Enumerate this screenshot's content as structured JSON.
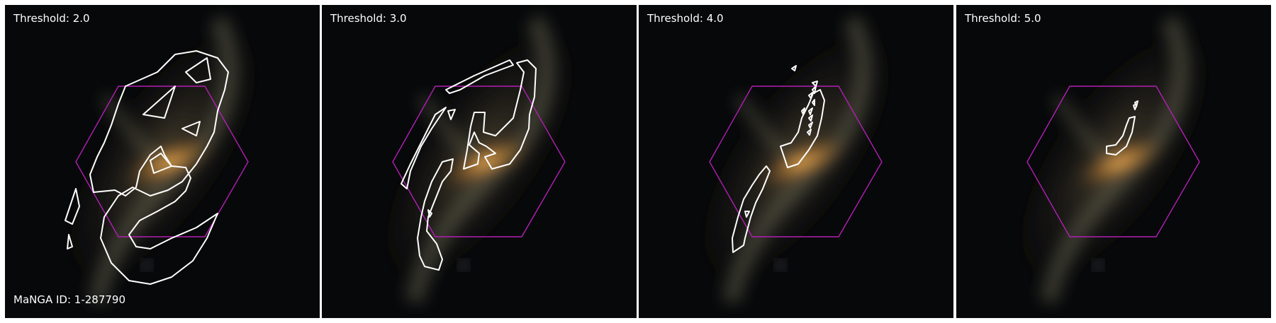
{
  "figure": {
    "panels": [
      {
        "threshold_label": "Threshold: 2.0"
      },
      {
        "threshold_label": "Threshold: 3.0"
      },
      {
        "threshold_label": "Threshold: 4.0"
      },
      {
        "threshold_label": "Threshold: 5.0"
      }
    ],
    "manga_id_label": "MaNGA ID: 1-287790"
  },
  "colors": {
    "background": "#07080a",
    "galaxy_core": "#f6b45a",
    "galaxy_arm": "#8a8a6a",
    "hexagon": "#b21fb4",
    "contour": "#ffffff",
    "figure_border": "#ffffff"
  }
}
